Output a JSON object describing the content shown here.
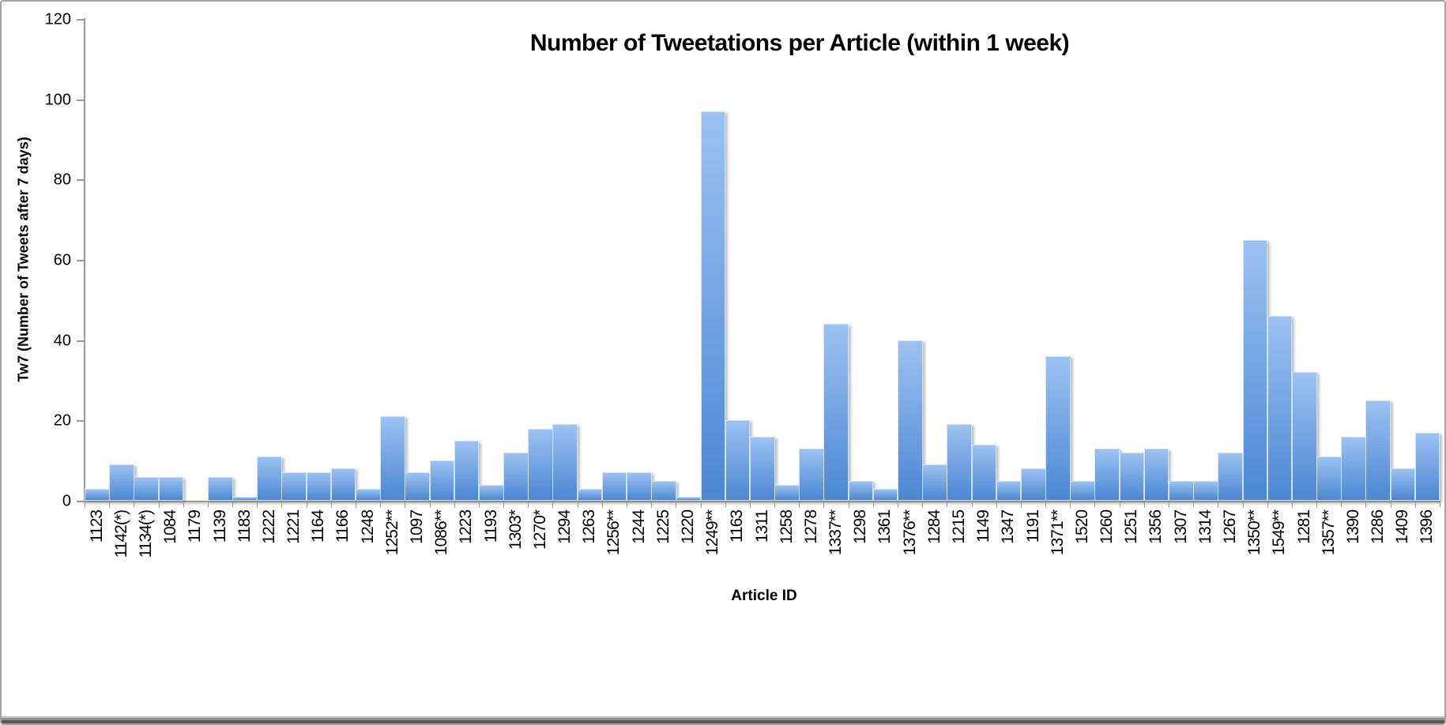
{
  "chart_data": {
    "type": "bar",
    "title": "Number of Tweetations per Article (within 1 week)",
    "xlabel": "Article ID",
    "ylabel": "Tw7 (Number of Tweets after 7 days)",
    "ylim": [
      0,
      120
    ],
    "ytick_step": 20,
    "grid": false,
    "legend": "none",
    "categories": [
      "1123",
      "1142(*)",
      "1134(*)",
      "1084",
      "1179",
      "1139",
      "1183",
      "1222",
      "1221",
      "1164",
      "1166",
      "1248",
      "1252**",
      "1097",
      "1086**",
      "1223",
      "1193",
      "1303*",
      "1270*",
      "1294",
      "1263",
      "1256**",
      "1244",
      "1225",
      "1220",
      "1249**",
      "1163",
      "1311",
      "1258",
      "1278",
      "1337**",
      "1298",
      "1361",
      "1376**",
      "1284",
      "1215",
      "1149",
      "1347",
      "1191",
      "1371**",
      "1520",
      "1260",
      "1251",
      "1356",
      "1307",
      "1314",
      "1267",
      "1350**",
      "1549**",
      "1281",
      "1357**",
      "1390",
      "1286",
      "1409",
      "1396"
    ],
    "values": [
      3,
      9,
      6,
      6,
      0,
      6,
      1,
      11,
      7,
      7,
      8,
      3,
      21,
      7,
      10,
      15,
      4,
      12,
      18,
      19,
      3,
      7,
      7,
      5,
      1,
      97,
      20,
      16,
      4,
      13,
      44,
      5,
      3,
      40,
      9,
      19,
      14,
      5,
      8,
      36,
      5,
      13,
      12,
      13,
      5,
      5,
      12,
      65,
      46,
      32,
      11,
      16,
      25,
      8,
      17
    ]
  },
  "colors": {
    "bar_gradient_top": "#9cc2f2",
    "bar_gradient_bottom": "#4b87d3",
    "axis": "#999999",
    "text": "#000000",
    "background": "#ffffff"
  }
}
